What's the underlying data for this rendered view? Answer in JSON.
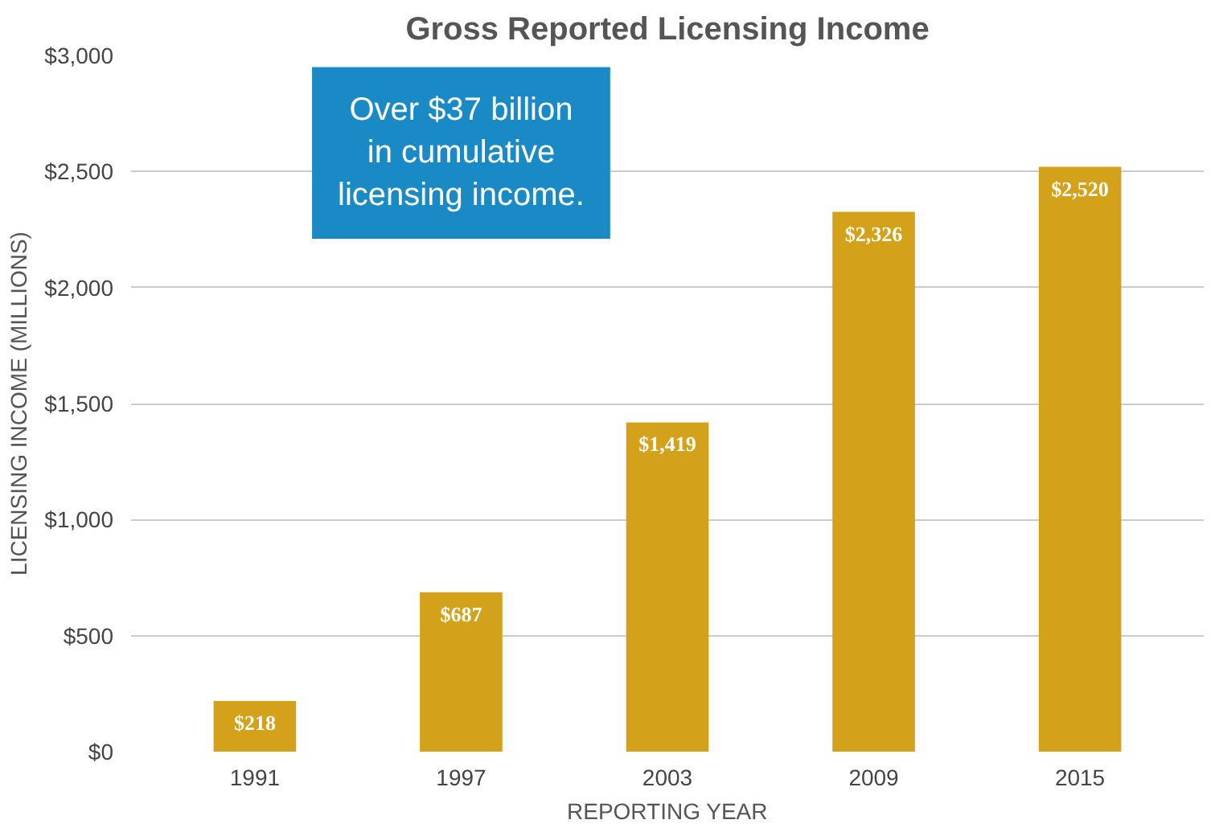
{
  "chart_data": {
    "type": "bar",
    "title": "Gross Reported Licensing Income",
    "xlabel": "REPORTING YEAR",
    "ylabel": "LICENSING INCOME (MILLIONS)",
    "categories": [
      "1991",
      "1997",
      "2003",
      "2009",
      "2015"
    ],
    "values": [
      218,
      687,
      1419,
      2326,
      2520
    ],
    "value_labels": [
      "$218",
      "$687",
      "$1,419",
      "$2,326",
      "$2,520"
    ],
    "color": "#d4a21a",
    "ylim": [
      0,
      3000
    ],
    "yticks": [
      {
        "value": 0,
        "label": "$0"
      },
      {
        "value": 500,
        "label": "$500"
      },
      {
        "value": 1000,
        "label": "$1,000"
      },
      {
        "value": 1500,
        "label": "$1,500"
      },
      {
        "value": 2000,
        "label": "$2,000"
      },
      {
        "value": 2500,
        "label": "$2,500"
      },
      {
        "value": 3000,
        "label": "$3,000"
      }
    ],
    "grid": "y",
    "annotations": [
      "Over $37 billion in cumulative licensing income."
    ]
  }
}
